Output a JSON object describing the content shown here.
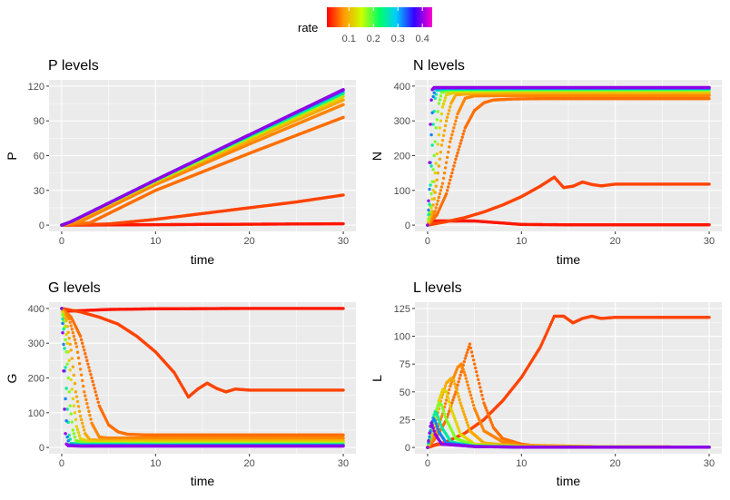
{
  "legend": {
    "title": "rate",
    "ticks": [
      "0.1",
      "0.2",
      "0.3",
      "0.4"
    ],
    "tick_values": [
      0.1,
      0.2,
      0.3,
      0.4
    ],
    "range": [
      0.01,
      0.44
    ]
  },
  "chart_data": [
    {
      "type": "scatter",
      "title": "P levels",
      "xlabel": "time",
      "ylabel": "P",
      "xlim": [
        0,
        30
      ],
      "ylim": [
        0,
        120
      ],
      "xticks": [
        "0",
        "10",
        "20",
        "30"
      ],
      "xtick_values": [
        0,
        10,
        20,
        30
      ],
      "yticks": [
        "0",
        "30",
        "60",
        "90",
        "120"
      ],
      "ytick_values": [
        0,
        30,
        60,
        90,
        120
      ],
      "grid": true,
      "series": [
        {
          "rate": 0.02,
          "x": [
            0,
            5,
            10,
            15,
            20,
            25,
            30
          ],
          "y": [
            0,
            0.2,
            0.4,
            0.6,
            0.8,
            1.0,
            1.2
          ]
        },
        {
          "rate": 0.04,
          "x": [
            0,
            5,
            10,
            15,
            20,
            25,
            30
          ],
          "y": [
            0,
            1,
            5,
            10,
            15,
            20,
            26
          ]
        },
        {
          "rate": 0.06,
          "x": [
            0,
            3,
            10,
            20,
            30
          ],
          "y": [
            0,
            2,
            30,
            62,
            93
          ]
        },
        {
          "rate": 0.07,
          "x": [
            0,
            2,
            10,
            20,
            30
          ],
          "y": [
            0,
            3,
            35,
            70,
            104
          ]
        },
        {
          "rate": 0.09,
          "x": [
            0,
            1.5,
            10,
            20,
            30
          ],
          "y": [
            0,
            4,
            37,
            73,
            108
          ]
        },
        {
          "rate": 0.12,
          "x": [
            0,
            1,
            10,
            20,
            30
          ],
          "y": [
            0,
            3,
            38,
            75,
            111
          ]
        },
        {
          "rate": 0.18,
          "x": [
            0,
            1,
            10,
            20,
            30
          ],
          "y": [
            0,
            3,
            38,
            76,
            113
          ]
        },
        {
          "rate": 0.25,
          "x": [
            0,
            1,
            10,
            20,
            30
          ],
          "y": [
            0,
            3,
            39,
            77,
            114
          ]
        },
        {
          "rate": 0.32,
          "x": [
            0,
            1,
            10,
            20,
            30
          ],
          "y": [
            0,
            3,
            39,
            78,
            116
          ]
        },
        {
          "rate": 0.4,
          "x": [
            0,
            1,
            10,
            20,
            30
          ],
          "y": [
            0,
            3,
            39,
            78,
            117
          ]
        }
      ]
    },
    {
      "type": "scatter",
      "title": "N levels",
      "xlabel": "time",
      "ylabel": "N",
      "xlim": [
        0,
        30
      ],
      "ylim": [
        0,
        400
      ],
      "xticks": [
        "0",
        "10",
        "20",
        "30"
      ],
      "xtick_values": [
        0,
        10,
        20,
        30
      ],
      "yticks": [
        "0",
        "100",
        "200",
        "300",
        "400"
      ],
      "ytick_values": [
        0,
        100,
        200,
        300,
        400
      ],
      "grid": true,
      "series": [
        {
          "rate": 0.02,
          "x": [
            0,
            0.2,
            5,
            10,
            15,
            20,
            30
          ],
          "y": [
            0,
            12,
            12,
            2,
            1,
            1,
            1
          ]
        },
        {
          "rate": 0.04,
          "x": [
            0,
            2,
            4,
            6,
            8,
            10,
            12,
            13.5,
            14.5,
            15.5,
            16.5,
            17.5,
            18.5,
            20,
            25,
            30
          ],
          "y": [
            0,
            10,
            22,
            38,
            58,
            82,
            112,
            138,
            108,
            112,
            124,
            117,
            113,
            118,
            118,
            118
          ]
        },
        {
          "rate": 0.06,
          "x": [
            0,
            1,
            2,
            3,
            4,
            5,
            6,
            7,
            9,
            12,
            20,
            30
          ],
          "y": [
            0,
            30,
            90,
            190,
            280,
            330,
            352,
            360,
            363,
            364,
            364,
            364
          ]
        },
        {
          "rate": 0.07,
          "x": [
            0,
            0.8,
            1.6,
            2.4,
            3.2,
            4.0,
            5,
            10,
            20,
            30
          ],
          "y": [
            0,
            40,
            120,
            240,
            320,
            365,
            372,
            373,
            373,
            373
          ]
        },
        {
          "rate": 0.09,
          "x": [
            0,
            0.5,
            1.0,
            1.5,
            2.0,
            2.5,
            3.0,
            5,
            10,
            20,
            30
          ],
          "y": [
            0,
            40,
            130,
            230,
            300,
            350,
            375,
            379,
            380,
            380,
            380
          ]
        },
        {
          "rate": 0.12,
          "x": [
            0,
            0.4,
            0.8,
            1.2,
            1.6,
            2.0,
            3,
            10,
            20,
            30
          ],
          "y": [
            0,
            50,
            150,
            260,
            340,
            375,
            383,
            385,
            385,
            385
          ]
        },
        {
          "rate": 0.18,
          "x": [
            0,
            0.3,
            0.6,
            0.9,
            1.2,
            1.5,
            2.5,
            10,
            20,
            30
          ],
          "y": [
            0,
            55,
            160,
            280,
            350,
            382,
            388,
            389,
            389,
            389
          ]
        },
        {
          "rate": 0.25,
          "x": [
            0,
            0.2,
            0.4,
            0.6,
            0.8,
            1.0,
            2,
            10,
            20,
            30
          ],
          "y": [
            0,
            60,
            170,
            290,
            365,
            388,
            391,
            392,
            392,
            392
          ]
        },
        {
          "rate": 0.32,
          "x": [
            0,
            0.15,
            0.3,
            0.45,
            0.6,
            0.8,
            2,
            10,
            20,
            30
          ],
          "y": [
            0,
            65,
            180,
            300,
            370,
            392,
            394,
            394,
            394,
            394
          ]
        },
        {
          "rate": 0.4,
          "x": [
            0,
            0.1,
            0.2,
            0.3,
            0.4,
            0.5,
            0.7,
            2,
            10,
            20,
            30
          ],
          "y": [
            0,
            70,
            180,
            290,
            360,
            390,
            396,
            396,
            396,
            396,
            396
          ]
        }
      ]
    },
    {
      "type": "scatter",
      "title": "G levels",
      "xlabel": "time",
      "ylabel": "G",
      "xlim": [
        0,
        30
      ],
      "ylim": [
        0,
        400
      ],
      "xticks": [
        "0",
        "10",
        "20",
        "30"
      ],
      "xtick_values": [
        0,
        10,
        20,
        30
      ],
      "yticks": [
        "0",
        "100",
        "200",
        "300",
        "400"
      ],
      "ytick_values": [
        0,
        100,
        200,
        300,
        400
      ],
      "grid": true,
      "series": [
        {
          "rate": 0.02,
          "x": [
            0,
            0.3,
            5,
            10,
            20,
            30
          ],
          "y": [
            400,
            392,
            397,
            399,
            400,
            400
          ]
        },
        {
          "rate": 0.04,
          "x": [
            0,
            2,
            4,
            6,
            8,
            10,
            12,
            13.5,
            14.5,
            15.5,
            16.5,
            17.5,
            18.5,
            20,
            25,
            30
          ],
          "y": [
            400,
            390,
            375,
            355,
            320,
            275,
            215,
            145,
            168,
            185,
            170,
            160,
            168,
            165,
            165,
            165
          ]
        },
        {
          "rate": 0.06,
          "x": [
            0,
            1,
            2,
            3,
            4,
            5,
            6,
            7,
            9,
            12,
            20,
            30
          ],
          "y": [
            400,
            375,
            320,
            220,
            120,
            65,
            45,
            38,
            36,
            36,
            36,
            36
          ]
        },
        {
          "rate": 0.07,
          "x": [
            0,
            0.8,
            1.6,
            2.4,
            3.2,
            4.0,
            5,
            10,
            20,
            30
          ],
          "y": [
            400,
            370,
            290,
            160,
            70,
            30,
            27,
            27,
            27,
            27
          ]
        },
        {
          "rate": 0.09,
          "x": [
            0,
            0.5,
            1.0,
            1.5,
            2.0,
            2.5,
            3.0,
            5,
            10,
            20,
            30
          ],
          "y": [
            400,
            365,
            280,
            160,
            90,
            40,
            22,
            20,
            20,
            20,
            20
          ]
        },
        {
          "rate": 0.12,
          "x": [
            0,
            0.4,
            0.8,
            1.2,
            1.6,
            2.0,
            3,
            10,
            20,
            30
          ],
          "y": [
            400,
            350,
            250,
            140,
            60,
            25,
            16,
            15,
            15,
            15
          ]
        },
        {
          "rate": 0.18,
          "x": [
            0,
            0.3,
            0.6,
            0.9,
            1.2,
            1.5,
            2.5,
            10,
            20,
            30
          ],
          "y": [
            400,
            345,
            240,
            120,
            50,
            20,
            12,
            11,
            11,
            11
          ]
        },
        {
          "rate": 0.25,
          "x": [
            0,
            0.2,
            0.4,
            0.6,
            0.8,
            1.0,
            2,
            10,
            20,
            30
          ],
          "y": [
            400,
            340,
            230,
            110,
            35,
            12,
            9,
            8,
            8,
            8
          ]
        },
        {
          "rate": 0.32,
          "x": [
            0,
            0.15,
            0.3,
            0.45,
            0.6,
            0.8,
            2,
            10,
            20,
            30
          ],
          "y": [
            400,
            335,
            220,
            100,
            30,
            8,
            6,
            6,
            6,
            6
          ]
        },
        {
          "rate": 0.4,
          "x": [
            0,
            0.1,
            0.2,
            0.3,
            0.4,
            0.5,
            0.7,
            2,
            10,
            20,
            30
          ],
          "y": [
            400,
            330,
            220,
            110,
            40,
            10,
            5,
            4,
            4,
            4,
            4
          ]
        }
      ]
    },
    {
      "type": "scatter",
      "title": "L levels",
      "xlabel": "time",
      "ylabel": "L",
      "xlim": [
        0,
        30
      ],
      "ylim": [
        0,
        125
      ],
      "xticks": [
        "0",
        "10",
        "20",
        "30"
      ],
      "xtick_values": [
        0,
        10,
        20,
        30
      ],
      "yticks": [
        "0",
        "25",
        "50",
        "75",
        "100",
        "125"
      ],
      "ytick_values": [
        0,
        25,
        50,
        75,
        100,
        125
      ],
      "grid": true,
      "series": [
        {
          "rate": 0.02,
          "x": [
            0,
            1,
            5,
            10,
            20,
            30
          ],
          "y": [
            0,
            3,
            2,
            1,
            0.5,
            0.3
          ]
        },
        {
          "rate": 0.04,
          "x": [
            0,
            2,
            4,
            6,
            8,
            10,
            12,
            13.5,
            14.5,
            15.5,
            16.5,
            17.5,
            18.5,
            20,
            25,
            30
          ],
          "y": [
            0,
            5,
            13,
            25,
            42,
            63,
            90,
            118,
            118,
            112,
            116,
            118,
            116,
            117,
            117,
            117
          ]
        },
        {
          "rate": 0.06,
          "x": [
            0,
            1,
            2,
            3,
            4,
            4.5,
            5,
            6,
            7,
            8,
            10,
            12,
            20,
            30
          ],
          "y": [
            0,
            10,
            25,
            50,
            80,
            93,
            75,
            40,
            18,
            8,
            3,
            1,
            0.5,
            0.3
          ]
        },
        {
          "rate": 0.07,
          "x": [
            0,
            0.8,
            1.6,
            2.4,
            3.2,
            3.6,
            4.0,
            5,
            6,
            8,
            10,
            20,
            30
          ],
          "y": [
            0,
            12,
            30,
            55,
            72,
            75,
            65,
            35,
            15,
            5,
            2,
            0.5,
            0.3
          ]
        },
        {
          "rate": 0.09,
          "x": [
            0,
            0.5,
            1.0,
            1.5,
            2.0,
            2.5,
            2.8,
            3.5,
            4.5,
            6,
            10,
            30
          ],
          "y": [
            0,
            12,
            28,
            45,
            58,
            62,
            60,
            40,
            15,
            4,
            1,
            0.3
          ]
        },
        {
          "rate": 0.12,
          "x": [
            0,
            0.4,
            0.8,
            1.2,
            1.6,
            2.0,
            2.5,
            3.5,
            5,
            10,
            30
          ],
          "y": [
            0,
            12,
            26,
            42,
            52,
            50,
            35,
            12,
            3,
            0.8,
            0.3
          ]
        },
        {
          "rate": 0.18,
          "x": [
            0,
            0.3,
            0.6,
            0.9,
            1.2,
            1.5,
            2.0,
            3.0,
            5,
            10,
            30
          ],
          "y": [
            0,
            10,
            22,
            33,
            40,
            38,
            25,
            8,
            2,
            0.5,
            0.3
          ]
        },
        {
          "rate": 0.25,
          "x": [
            0,
            0.2,
            0.4,
            0.6,
            0.8,
            1.0,
            1.5,
            2.5,
            5,
            10,
            30
          ],
          "y": [
            0,
            8,
            18,
            27,
            32,
            30,
            18,
            5,
            1,
            0.4,
            0.2
          ]
        },
        {
          "rate": 0.32,
          "x": [
            0,
            0.15,
            0.3,
            0.45,
            0.6,
            0.8,
            1.2,
            2,
            5,
            10,
            30
          ],
          "y": [
            0,
            7,
            15,
            22,
            26,
            24,
            14,
            4,
            1,
            0.3,
            0.2
          ]
        },
        {
          "rate": 0.4,
          "x": [
            0,
            0.1,
            0.2,
            0.3,
            0.4,
            0.5,
            0.8,
            1.5,
            5,
            10,
            30
          ],
          "y": [
            0,
            6,
            13,
            19,
            22,
            20,
            12,
            3,
            0.8,
            0.3,
            0.2
          ]
        }
      ]
    }
  ]
}
